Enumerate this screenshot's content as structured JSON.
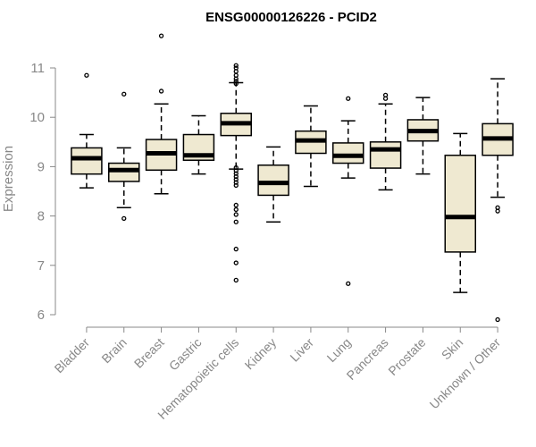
{
  "chart_data": {
    "type": "boxplot",
    "title": "ENSG00000126226 - PCID2",
    "xlabel": "",
    "ylabel": "Expression",
    "ylim": [
      5.7,
      11.5
    ],
    "yticks": [
      6,
      7,
      8,
      9,
      10,
      11
    ],
    "grid": false,
    "box_fill": "#efe9d1",
    "median_color": "#000000",
    "axis_color": "#888888",
    "categories": [
      "Bladder",
      "Brain",
      "Breast",
      "Gastric",
      "Hematopoietic cells",
      "Kidney",
      "Liver",
      "Lung",
      "Pancreas",
      "Prostate",
      "Skin",
      "Unknown / Other"
    ],
    "boxes": [
      {
        "name": "Bladder",
        "whisker_low": 8.57,
        "q1": 8.85,
        "median": 9.17,
        "q3": 9.38,
        "whisker_high": 9.65,
        "outliers": [
          10.85
        ]
      },
      {
        "name": "Brain",
        "whisker_low": 8.17,
        "q1": 8.7,
        "median": 8.93,
        "q3": 9.07,
        "whisker_high": 9.38,
        "outliers": [
          10.47,
          7.95
        ]
      },
      {
        "name": "Breast",
        "whisker_low": 8.45,
        "q1": 8.93,
        "median": 9.27,
        "q3": 9.55,
        "whisker_high": 10.27,
        "outliers": [
          11.65,
          10.53
        ]
      },
      {
        "name": "Gastric",
        "whisker_low": 8.85,
        "q1": 9.13,
        "median": 9.23,
        "q3": 9.65,
        "whisker_high": 10.03,
        "outliers": []
      },
      {
        "name": "Hematopoietic cells",
        "whisker_low": 8.95,
        "q1": 9.63,
        "median": 9.88,
        "q3": 10.08,
        "whisker_high": 10.7,
        "outliers": [
          11.05,
          11.0,
          10.93,
          10.85,
          10.78,
          10.73,
          10.68,
          8.98,
          8.92,
          8.86,
          8.8,
          8.74,
          8.68,
          8.62,
          8.22,
          8.13,
          8.03,
          7.88,
          7.33,
          7.05,
          6.7
        ]
      },
      {
        "name": "Kidney",
        "whisker_low": 7.88,
        "q1": 8.42,
        "median": 8.67,
        "q3": 9.03,
        "whisker_high": 9.4,
        "outliers": []
      },
      {
        "name": "Liver",
        "whisker_low": 8.6,
        "q1": 9.27,
        "median": 9.53,
        "q3": 9.72,
        "whisker_high": 10.23,
        "outliers": []
      },
      {
        "name": "Lung",
        "whisker_low": 8.77,
        "q1": 9.07,
        "median": 9.22,
        "q3": 9.48,
        "whisker_high": 9.93,
        "outliers": [
          10.38,
          6.63
        ]
      },
      {
        "name": "Pancreas",
        "whisker_low": 8.53,
        "q1": 8.97,
        "median": 9.35,
        "q3": 9.5,
        "whisker_high": 10.27,
        "outliers": [
          10.45,
          10.38
        ]
      },
      {
        "name": "Prostate",
        "whisker_low": 8.85,
        "q1": 9.52,
        "median": 9.72,
        "q3": 9.95,
        "whisker_high": 10.4,
        "outliers": []
      },
      {
        "name": "Skin",
        "whisker_low": 6.45,
        "q1": 7.27,
        "median": 7.98,
        "q3": 9.23,
        "whisker_high": 9.67,
        "outliers": []
      },
      {
        "name": "Unknown / Other",
        "whisker_low": 8.38,
        "q1": 9.23,
        "median": 9.57,
        "q3": 9.87,
        "whisker_high": 10.78,
        "outliers": [
          8.17,
          8.1,
          5.9
        ]
      }
    ]
  }
}
